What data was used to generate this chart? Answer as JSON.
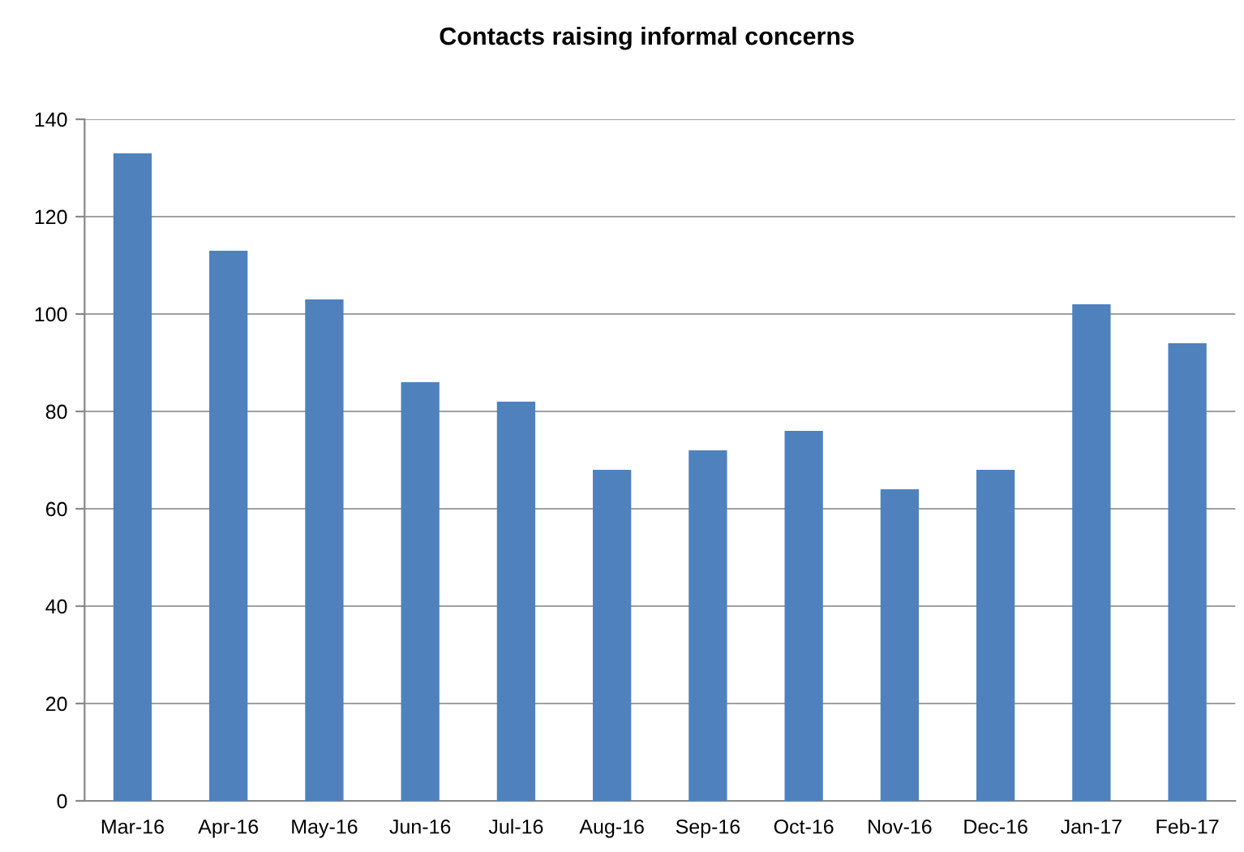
{
  "chart_data": {
    "type": "bar",
    "title": "Contacts raising informal concerns",
    "categories": [
      "Mar-16",
      "Apr-16",
      "May-16",
      "Jun-16",
      "Jul-16",
      "Aug-16",
      "Sep-16",
      "Oct-16",
      "Nov-16",
      "Dec-16",
      "Jan-17",
      "Feb-17"
    ],
    "values": [
      133,
      113,
      103,
      86,
      82,
      68,
      72,
      76,
      64,
      68,
      102,
      94
    ],
    "color": "#4f81bd",
    "ylim": [
      0,
      140
    ],
    "yticks": [
      0,
      20,
      40,
      60,
      80,
      100,
      120,
      140
    ],
    "grid": "y",
    "legend": false
  }
}
